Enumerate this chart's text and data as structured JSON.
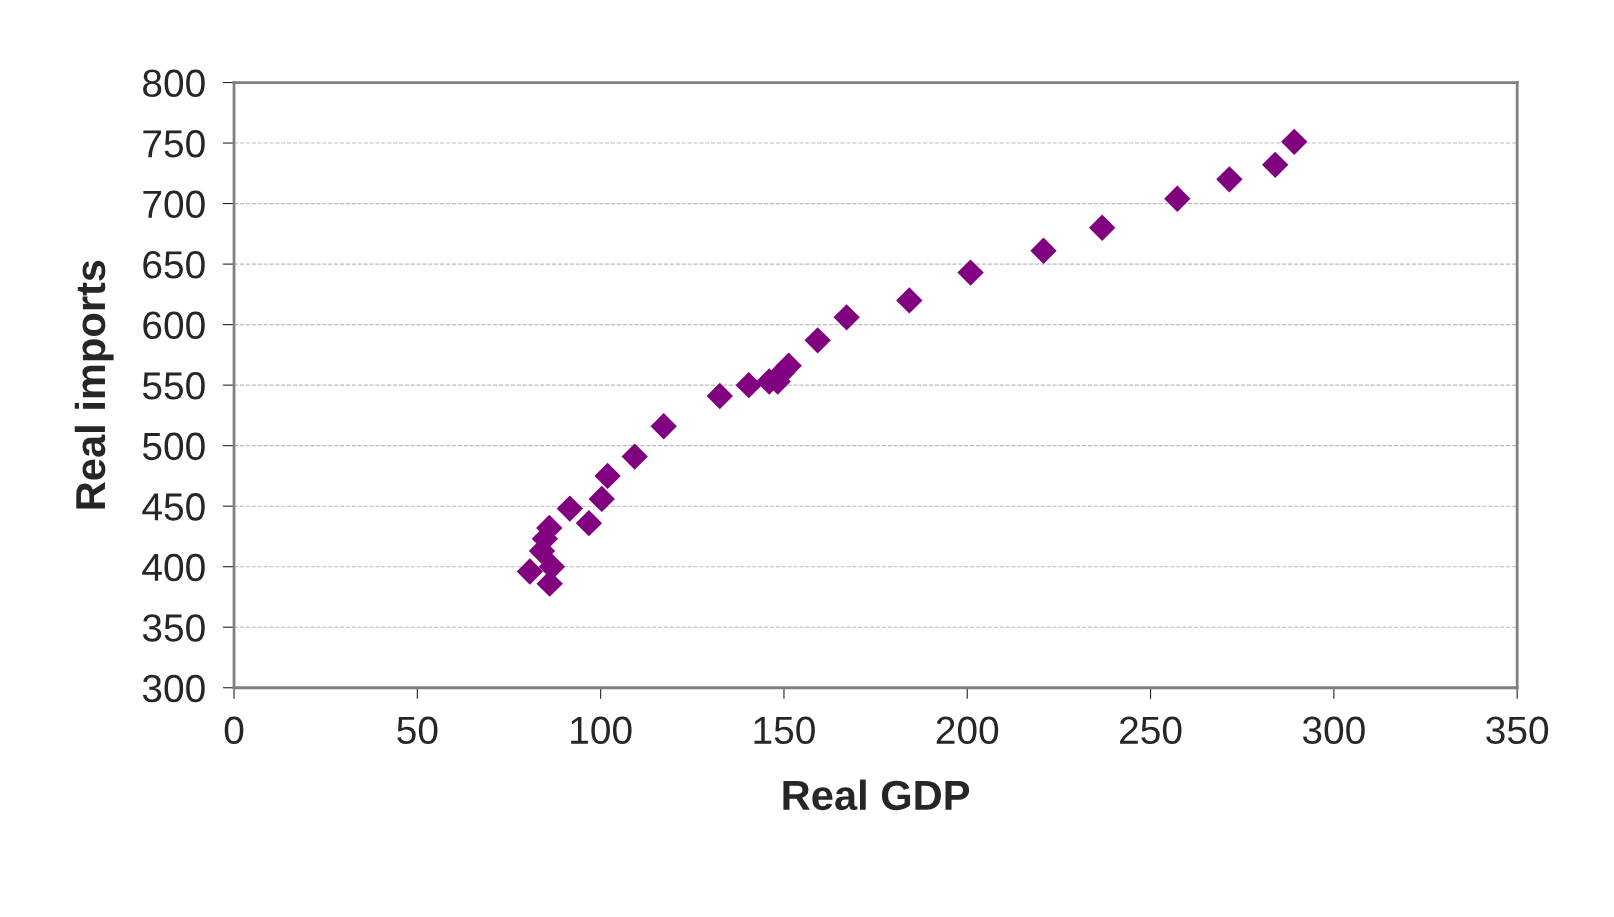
{
  "chart_data": {
    "type": "scatter",
    "xlabel": "Real GDP",
    "ylabel": "Real imports",
    "marker": "diamond",
    "grid": "y",
    "xlim": [
      0,
      350
    ],
    "xticks": [
      0,
      50,
      100,
      150,
      200,
      250,
      300,
      350
    ],
    "ylim": [
      300,
      800
    ],
    "yticks": [
      300,
      350,
      400,
      450,
      500,
      550,
      600,
      650,
      700,
      750,
      800
    ],
    "series": [
      {
        "color": "#800080",
        "x": [
          80.7,
          86.1,
          84,
          86.7,
          84.8,
          86,
          91.6,
          96.8,
          100.3,
          101.9,
          109.3,
          117.2,
          132.5,
          140.4,
          146,
          148.3,
          149.4,
          151.3,
          159.2,
          167.1,
          184.2,
          200.9,
          220.8,
          236.8,
          257.3,
          271.5,
          284,
          289.2
        ],
        "values": [
          396,
          386,
          413,
          400,
          423,
          432,
          448,
          436,
          456,
          475,
          491,
          516,
          541,
          550,
          553,
          553,
          560,
          566,
          587,
          606,
          620,
          643,
          661,
          680,
          704,
          720,
          732,
          751
        ]
      }
    ]
  }
}
